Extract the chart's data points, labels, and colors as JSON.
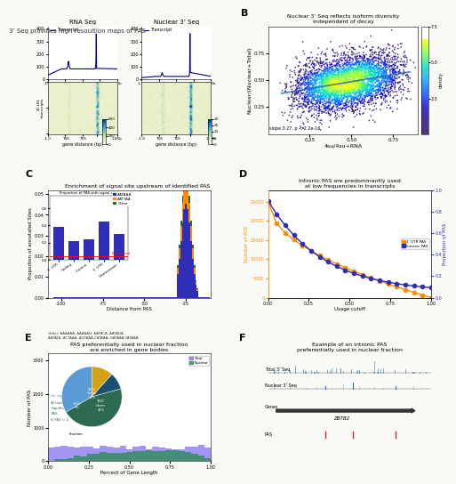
{
  "title_A": "3’ Seq provides high resoultion maps of PAS",
  "title_B": "Nuclear 3’ Seq reflects isoform diversity\nindependent of decay",
  "title_C": "Enrichment of signal site upstream of identified PAS",
  "title_D": "Intronic PAS are predominantly used\nat low frequencies in transcripts",
  "title_E_line1": "PAS preferentially used in nuclear fraction",
  "title_E_line2": "are enriched in gene bodies",
  "title_F": "Example of an intronic PAS\npreferentially used in nuclear fraction",
  "label_RNA_seq": "RNA Seq",
  "label_Nuclear_seq": "Nuclear 3’ Seq",
  "label_Transcript": "Transcript",
  "label_TSS": "TSS",
  "label_TES": "TES",
  "label_gene_distance": "gene distance (bp)",
  "label_47161": "47,161 transcripts",
  "panel_A_color": "#00008B",
  "background_color": "#ffffff",
  "fig_bg": "#f5f5f0",
  "heatmap_colors_RNA": [
    "#f5f5dc",
    "#c8e6c9",
    "#4dd0e1",
    "#1565c0",
    "#0d1b6e"
  ],
  "heatmap_colors_Nuc": [
    "#f5f5dc",
    "#c8e6c9",
    "#4dd0e1",
    "#1565c0",
    "#0d1b6e"
  ],
  "colorbar_max_RNA": 600,
  "colorbar_max_Nuc": 20,
  "scatter_title": "Nuclear 3’ Seq reflects isoform diversity\nindependent of decay",
  "scatter_xlabel": "4su/4su+RNA",
  "scatter_ylabel": "Nuclear/(Nuclear+Total)",
  "scatter_annotation": "slope 0.27, p < 2.2e-16",
  "density_label": "density",
  "density_ticks": [
    2.5,
    5.0,
    7.5
  ],
  "C_xlabel": "Distance from PAS",
  "C_ylabel": "Proportion of annotated Sites",
  "C_legend": [
    "AATAAA",
    "AATTAA",
    "Other"
  ],
  "C_colors": [
    "#2e2eb8",
    "#ff8c00",
    "#2d6a2d"
  ],
  "C_inset_title": "Proportion of PAS with signal site",
  "C_categories": [
    "5’ UTR",
    "Coding",
    "Intronic",
    "3’ UTR",
    "Downstream"
  ],
  "C_other_text": "Other: AAAAAA, AAAAAG, AATACA, AATAGA,\nAATATA, ACTAAA, AGTAAA,CATAAA, GATAAA,TATAAA",
  "D_ylabel_left": "Number of PAS",
  "D_ylabel_right": "Proportion of PAS",
  "D_xlabel": "Usage cutoff",
  "D_series": [
    "3’ UTR PAS",
    "Intronic PAS"
  ],
  "D_colors": [
    "#ff8c00",
    "#2e2eb8"
  ],
  "E_ylabel": "Number of PAS",
  "E_xlabel": "Percent of Gene Length",
  "E_pie_labels": [
    "No significant PAS",
    "At least 1\nSignificant\nPAS,\n& PAU > 2",
    "7887\nGenes\n46%",
    "1594\n9%",
    "5822\nGenes\n34%"
  ],
  "E_pie_colors": [
    "#e8e8e8",
    "#4a9a8a",
    "#2e6e9e",
    "#8B4513"
  ],
  "F_label_Total": "Total 3’ Seq",
  "F_label_Nuclear": "Nuclear 3’ Seq",
  "F_label_Genes": "Genes",
  "F_label_PAS": "PAS",
  "F_gene_name": "ZBTB2"
}
